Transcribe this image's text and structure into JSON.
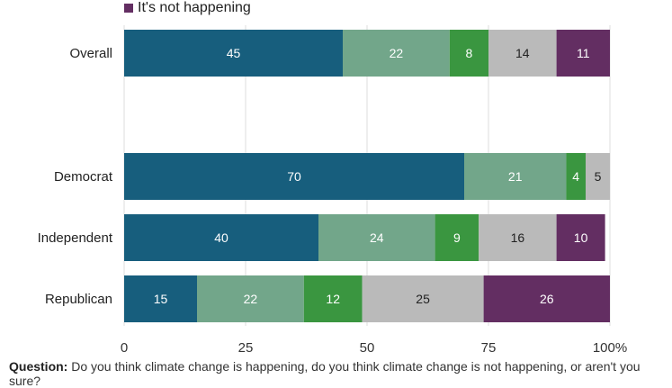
{
  "legend": {
    "label": "It's not happening",
    "color": "#632e62"
  },
  "caption": {
    "bold": "Question:",
    "text": " Do you think climate change is happening, do you think climate change is not happening, or aren't you sure?"
  },
  "chart_data": {
    "type": "bar",
    "orientation": "horizontal",
    "stacked": true,
    "categories": [
      "Overall",
      "Democrat",
      "Independent",
      "Republican"
    ],
    "series": [
      {
        "color": "#175e7d",
        "label_color": "#ffffff",
        "values": [
          45,
          70,
          40,
          15
        ]
      },
      {
        "color": "#72a68a",
        "label_color": "#ffffff",
        "values": [
          22,
          21,
          24,
          22
        ]
      },
      {
        "color": "#3a9640",
        "label_color": "#ffffff",
        "values": [
          8,
          4,
          9,
          12
        ]
      },
      {
        "color": "#bababa",
        "label_color": "#222222",
        "values": [
          14,
          5,
          16,
          25
        ]
      },
      {
        "name": "It's not happening",
        "color": "#632e62",
        "label_color": "#ffffff",
        "values": [
          11,
          null,
          10,
          26
        ]
      }
    ],
    "xlim": [
      0,
      100
    ],
    "xticks": [
      "0",
      "25",
      "50",
      "75",
      "100%"
    ],
    "xtick_values": [
      0,
      25,
      50,
      75,
      100
    ],
    "grid": true
  }
}
